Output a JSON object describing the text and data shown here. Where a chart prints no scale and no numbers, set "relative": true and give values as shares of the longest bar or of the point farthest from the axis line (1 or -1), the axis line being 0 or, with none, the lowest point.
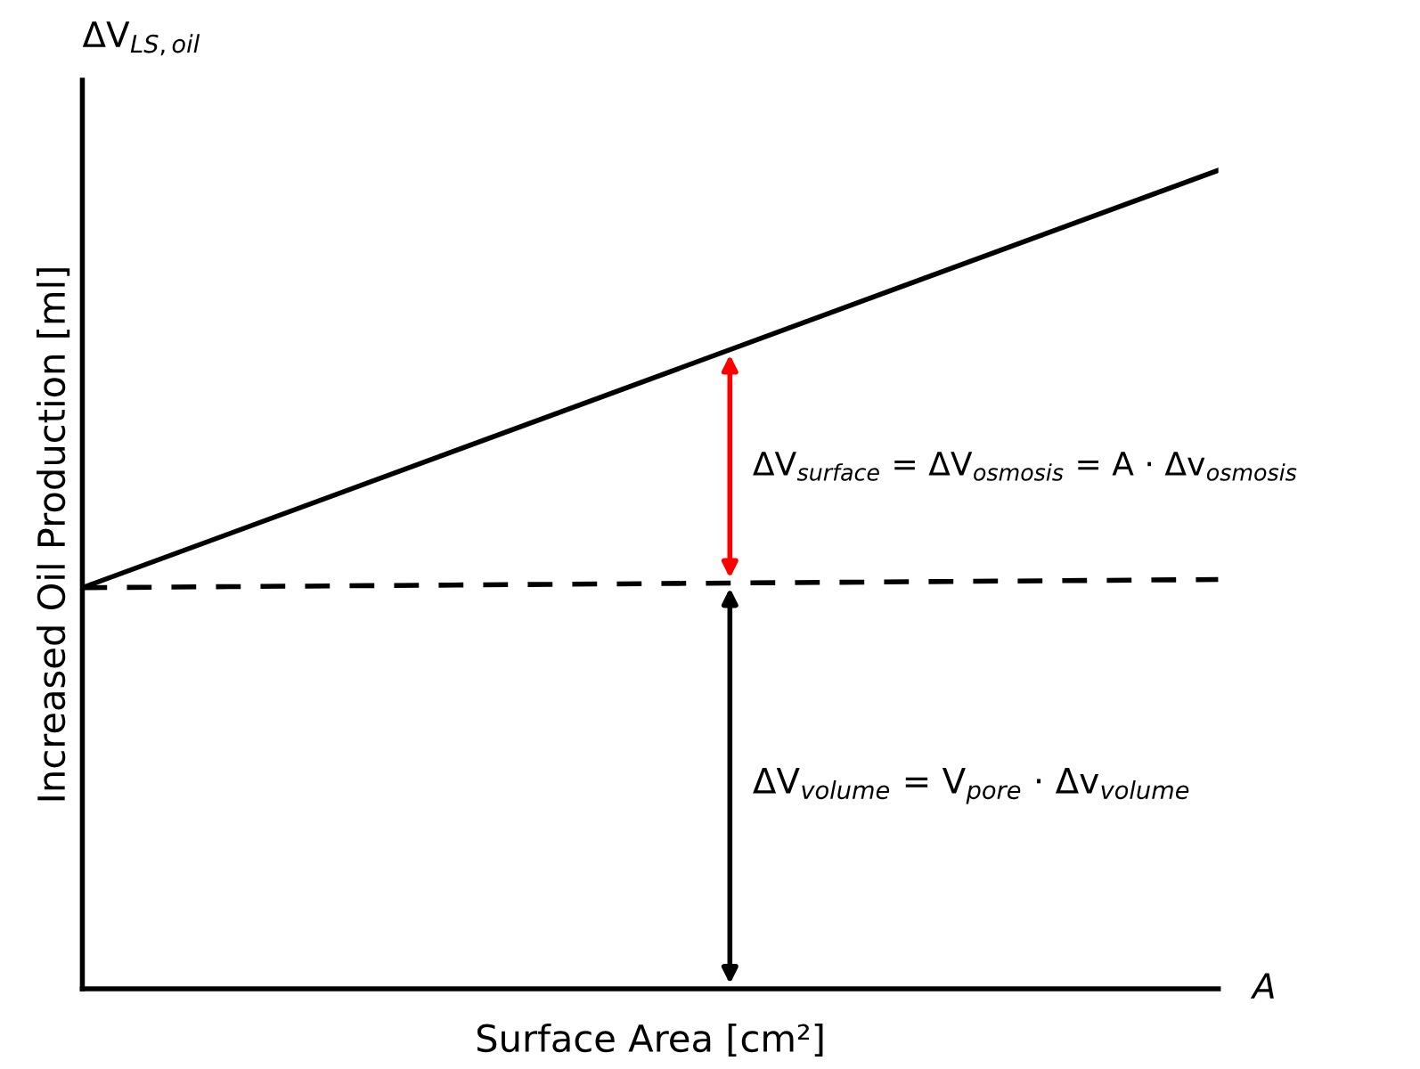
{
  "chart_data": {
    "type": "line",
    "relative": true,
    "categories": [
      null,
      null
    ],
    "series": [
      {
        "color": "#000000",
        "values": [
          0.49,
          1
        ],
        "line_style": "solid"
      },
      {
        "color": "#000000",
        "values": [
          0.49,
          0.5
        ],
        "line_style": "dashed"
      }
    ],
    "xlabel": "Surface Area [cm²]",
    "ylabel": "Increased Oil Production [ml]",
    "annotations": [
      "ΔV$_{surface}$ = ΔV$_{osmosis}$ = A · Δv$_{osmosis}$",
      "ΔV$_{volume}$ = V$_{pore}$ · Δv$_{volume}$",
      "ΔV$_{LS,oil}$",
      "A"
    ],
    "grid": false,
    "marker": "none",
    "tick_labels": false
  }
}
